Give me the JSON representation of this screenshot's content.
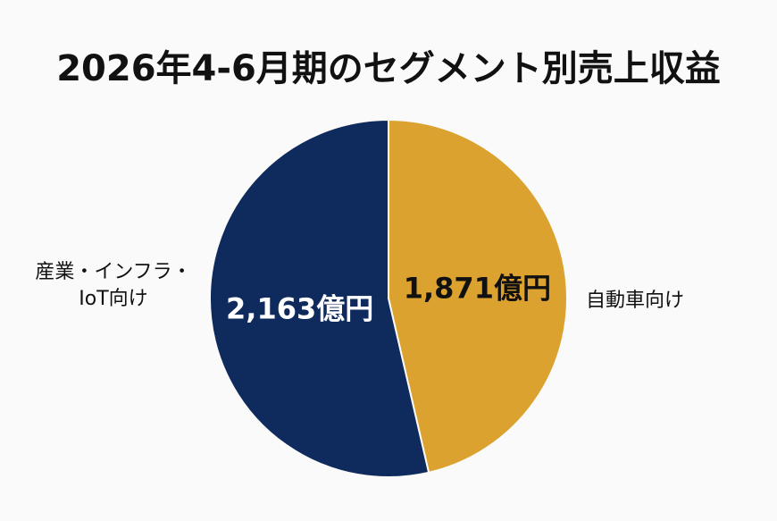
{
  "chart_data": {
    "type": "pie",
    "title": "2026年4-6月期のセグメント別売上収益",
    "unit": "億円",
    "slices": [
      {
        "name_line1": "自動車向け",
        "name_line2": "",
        "value": 1871,
        "value_label": "1,871億円",
        "color": "#dba22f",
        "label_color": "#111111"
      },
      {
        "name_line1": "産業・インフラ・",
        "name_line2": "IoT向け",
        "value": 2163,
        "value_label": "2,163億円",
        "color": "#0f2a5c",
        "label_color": "#ffffff"
      }
    ],
    "start_angle": "12 o'clock, clockwise",
    "legend": "none"
  }
}
